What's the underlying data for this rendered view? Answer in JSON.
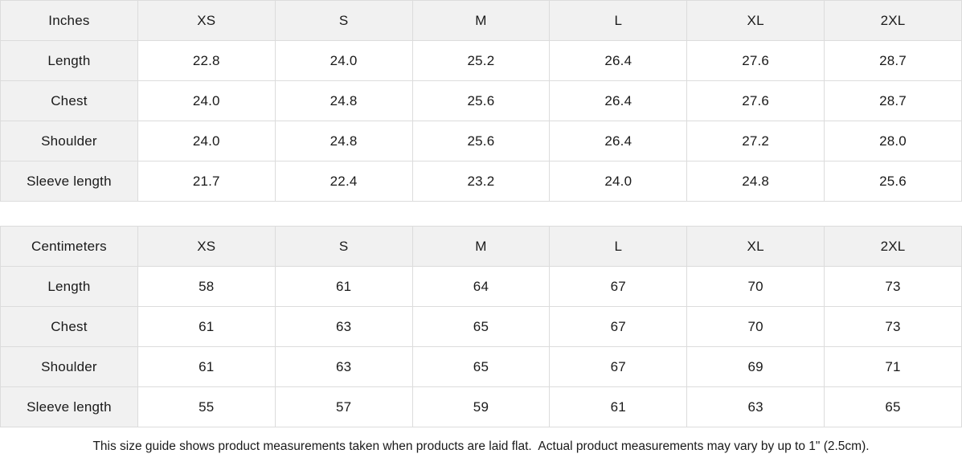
{
  "colors": {
    "header_bg": "#f1f1f1",
    "border": "#dcdcdc",
    "text": "#1a1a1a",
    "background": "#ffffff"
  },
  "tables": [
    {
      "unit_label": "Inches",
      "sizes": [
        "XS",
        "S",
        "M",
        "L",
        "XL",
        "2XL"
      ],
      "rows": [
        {
          "label": "Length",
          "values": [
            "22.8",
            "24.0",
            "25.2",
            "26.4",
            "27.6",
            "28.7"
          ]
        },
        {
          "label": "Chest",
          "values": [
            "24.0",
            "24.8",
            "25.6",
            "26.4",
            "27.6",
            "28.7"
          ]
        },
        {
          "label": "Shoulder",
          "values": [
            "24.0",
            "24.8",
            "25.6",
            "26.4",
            "27.2",
            "28.0"
          ]
        },
        {
          "label": "Sleeve length",
          "values": [
            "21.7",
            "22.4",
            "23.2",
            "24.0",
            "24.8",
            "25.6"
          ]
        }
      ]
    },
    {
      "unit_label": "Centimeters",
      "sizes": [
        "XS",
        "S",
        "M",
        "L",
        "XL",
        "2XL"
      ],
      "rows": [
        {
          "label": "Length",
          "values": [
            "58",
            "61",
            "64",
            "67",
            "70",
            "73"
          ]
        },
        {
          "label": "Chest",
          "values": [
            "61",
            "63",
            "65",
            "67",
            "70",
            "73"
          ]
        },
        {
          "label": "Shoulder",
          "values": [
            "61",
            "63",
            "65",
            "67",
            "69",
            "71"
          ]
        },
        {
          "label": "Sleeve length",
          "values": [
            "55",
            "57",
            "59",
            "61",
            "63",
            "65"
          ]
        }
      ]
    }
  ],
  "footer": {
    "note": "This size guide shows product measurements taken when products are laid flat.  Actual product measurements may vary by up to 1\" (2.5cm)."
  }
}
